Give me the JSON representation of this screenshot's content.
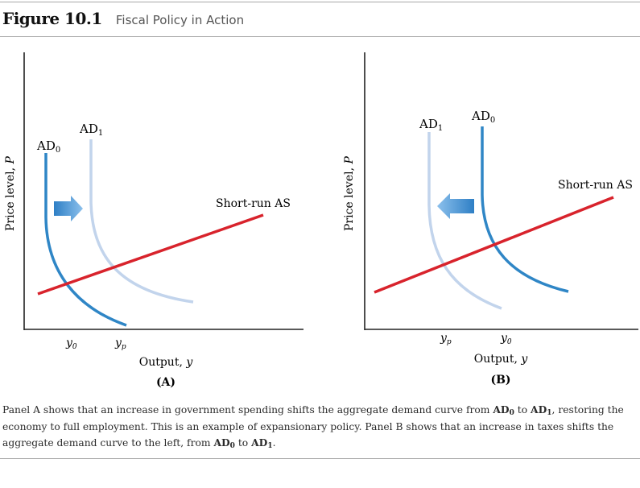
{
  "figure": {
    "label": "Figure 10.1",
    "title": "Fiscal Policy in Action"
  },
  "panel_a": {
    "ylabel": "Price level, P",
    "xlabel": "Output, y",
    "panel_label": "(A)",
    "ad0_label": "AD",
    "ad0_sub": "0",
    "ad1_label": "AD",
    "ad1_sub": "1",
    "as_label": "Short-run AS",
    "tick_1": "y",
    "tick_1_sub": "0",
    "tick_2": "y",
    "tick_2_sub": "p",
    "arrow_direction": "right"
  },
  "panel_b": {
    "ylabel": "Price level, P",
    "xlabel": "Output, y",
    "panel_label": "(B)",
    "ad0_label": "AD",
    "ad0_sub": "0",
    "ad1_label": "AD",
    "ad1_sub": "1",
    "as_label": "Short-run AS",
    "tick_1": "y",
    "tick_1_sub": "p",
    "tick_2": "y",
    "tick_2_sub": "0",
    "arrow_direction": "left"
  },
  "caption": {
    "t1": "Panel A shows that an increase in government spending shifts the aggregate demand curve from ",
    "b1": "AD",
    "b1_sub": "0",
    "t2": " to ",
    "b2": "AD",
    "b2_sub": "1",
    "t3": ", restoring the economy to full employment. This is an example of expansionary policy. Panel B shows that an increase in taxes shifts the aggregate demand curve to the left, from ",
    "b3": "AD",
    "b3_sub": "0",
    "t4": " to ",
    "b4": "AD",
    "b4_sub": "1",
    "t5": "."
  },
  "colors": {
    "ad0": "#2f86c6",
    "ad1": "#c2d4ec",
    "as": "#d8232c",
    "axis": "#222222",
    "arrow_dark": "#2e7fc5",
    "arrow_light": "#8cc0ec"
  }
}
